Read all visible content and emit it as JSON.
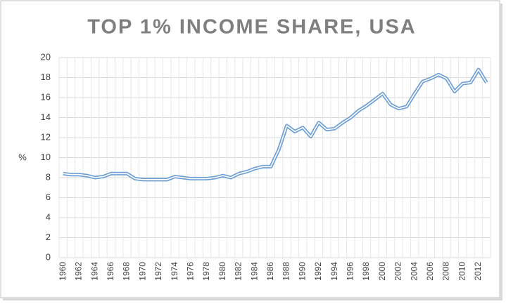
{
  "chart_data": {
    "type": "line",
    "title": "TOP 1% INCOME SHARE, USA",
    "y_label": "%",
    "categories": [
      "1960",
      null,
      "1962",
      null,
      "1964",
      null,
      "1966",
      null,
      "1968",
      null,
      "1970",
      null,
      "1972",
      null,
      "1974",
      null,
      "1976",
      null,
      "1978",
      null,
      "1980",
      null,
      "1982",
      null,
      "1984",
      null,
      "1986",
      null,
      "1988",
      null,
      "1990",
      null,
      "1992",
      null,
      "1994",
      null,
      "1996",
      null,
      "1998",
      null,
      "2000",
      null,
      "2002",
      null,
      "2004",
      null,
      "2006",
      null,
      "2008",
      null,
      "2010",
      null,
      "2012",
      null
    ],
    "values": [
      8.4,
      8.3,
      8.3,
      8.2,
      8.0,
      8.1,
      8.4,
      8.4,
      8.4,
      7.9,
      7.8,
      7.8,
      7.8,
      7.8,
      8.1,
      8.0,
      7.9,
      7.9,
      7.9,
      8.0,
      8.2,
      8.0,
      8.4,
      8.6,
      8.9,
      9.1,
      9.1,
      10.8,
      13.2,
      12.6,
      13.0,
      12.1,
      13.5,
      12.8,
      12.9,
      13.5,
      14.0,
      14.7,
      15.2,
      15.8,
      16.4,
      15.3,
      14.9,
      15.1,
      16.4,
      17.6,
      17.9,
      18.3,
      17.9,
      16.6,
      17.4,
      17.5,
      18.8,
      17.5
    ],
    "color": "#6fa0d4",
    "ylim": [
      0,
      20
    ],
    "yticks": [
      0,
      2,
      4,
      6,
      8,
      10,
      12,
      14,
      16,
      18,
      20
    ],
    "grid": true
  }
}
